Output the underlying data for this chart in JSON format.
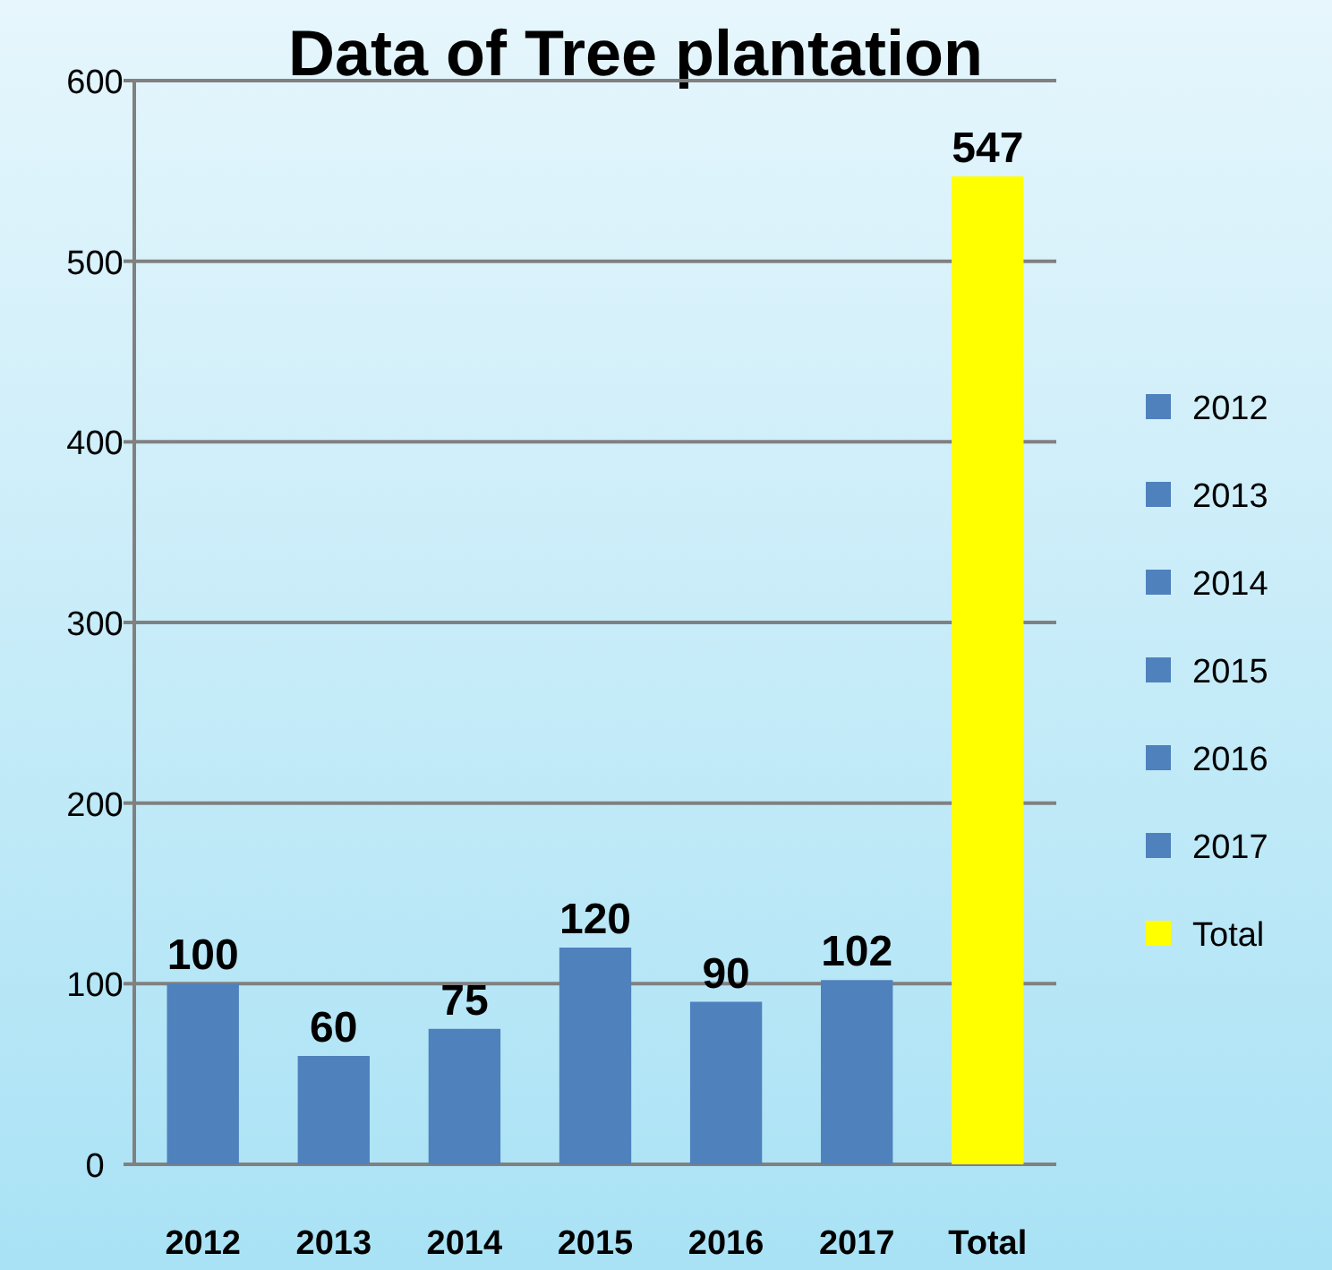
{
  "chart_data": {
    "type": "bar",
    "title": "Data of Tree plantation",
    "stacked": true,
    "categories": [
      "2012",
      "2013",
      "2014",
      "2015",
      "2016",
      "2017",
      "Total"
    ],
    "series": [
      {
        "name": "2012",
        "color": "#4f81bd",
        "values": [
          100,
          null,
          null,
          null,
          null,
          null,
          null
        ]
      },
      {
        "name": "2013",
        "color": "#4f81bd",
        "values": [
          null,
          60,
          null,
          null,
          null,
          null,
          null
        ]
      },
      {
        "name": "2014",
        "color": "#4f81bd",
        "values": [
          null,
          null,
          75,
          null,
          null,
          null,
          null
        ]
      },
      {
        "name": "2015",
        "color": "#4f81bd",
        "values": [
          null,
          null,
          null,
          120,
          null,
          null,
          null
        ]
      },
      {
        "name": "2016",
        "color": "#4f81bd",
        "values": [
          null,
          null,
          null,
          null,
          90,
          null,
          null
        ]
      },
      {
        "name": "2017",
        "color": "#4f81bd",
        "values": [
          null,
          null,
          null,
          null,
          null,
          102,
          null
        ]
      },
      {
        "name": "Total",
        "color": "#ffff00",
        "values": [
          null,
          null,
          null,
          null,
          null,
          null,
          547
        ]
      }
    ],
    "ylim": [
      0,
      600
    ],
    "yticks": [
      0,
      100,
      200,
      300,
      400,
      500,
      600
    ],
    "grid": true,
    "data_labels": true,
    "legend": "right"
  }
}
